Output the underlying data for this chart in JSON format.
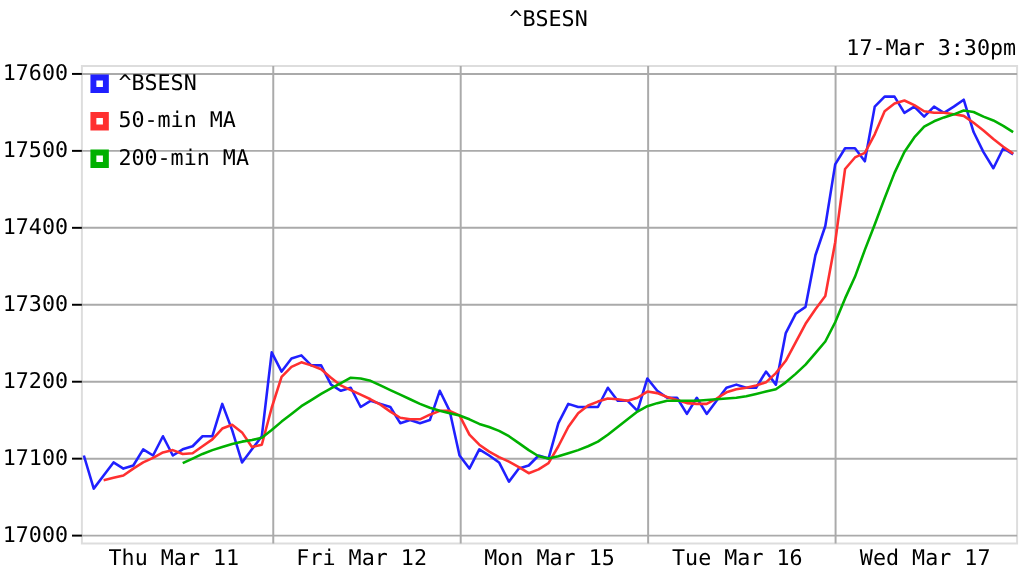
{
  "chart_data": {
    "type": "line",
    "title": "^BSESN",
    "annotations": [
      "17-Mar 3:30pm"
    ],
    "categories": [
      null,
      null,
      null,
      null,
      null,
      null,
      null,
      null,
      null,
      "Thu Mar 11",
      null,
      null,
      null,
      null,
      null,
      null,
      null,
      null,
      null,
      null,
      null,
      null,
      null,
      null,
      null,
      null,
      null,
      null,
      "Fri Mar 12",
      null,
      null,
      null,
      null,
      null,
      null,
      null,
      null,
      null,
      null,
      null,
      null,
      null,
      null,
      null,
      null,
      null,
      null,
      "Mon Mar 15",
      null,
      null,
      null,
      null,
      null,
      null,
      null,
      null,
      null,
      null,
      null,
      null,
      null,
      null,
      null,
      null,
      null,
      null,
      "Tue Mar 16",
      null,
      null,
      null,
      null,
      null,
      null,
      null,
      null,
      null,
      null,
      null,
      null,
      null,
      null,
      null,
      null,
      null,
      null,
      "Wed Mar 17",
      null,
      null,
      null,
      null,
      null,
      null,
      null,
      null,
      null
    ],
    "ylim": [
      16990,
      17610
    ],
    "yticks": [
      {
        "value": 17000,
        "label": "17000"
      },
      {
        "value": 17100,
        "label": "17100"
      },
      {
        "value": 17200,
        "label": "17200"
      },
      {
        "value": 17300,
        "label": "17300"
      },
      {
        "value": 17400,
        "label": "17400"
      },
      {
        "value": 17500,
        "label": "17500"
      },
      {
        "value": 17600,
        "label": "17600"
      }
    ],
    "grid": true,
    "legend": "top left",
    "marker": "none",
    "line_style": "solid",
    "series": [
      {
        "name": "^BSESN",
        "color": "#2020ff",
        "values": [
          17103,
          17060,
          17077,
          17094,
          17086,
          17090,
          17111,
          17103,
          17128,
          17103,
          17111,
          17115,
          17128,
          17128,
          17170,
          17136,
          17094,
          17111,
          17128,
          17237,
          17212,
          17229,
          17233,
          17220,
          17220,
          17195,
          17187,
          17191,
          17166,
          17174,
          17170,
          17166,
          17145,
          17149,
          17145,
          17149,
          17187,
          17161,
          17103,
          17086,
          17111,
          17103,
          17094,
          17069,
          17086,
          17090,
          17103,
          17099,
          17145,
          17170,
          17166,
          17166,
          17166,
          17191,
          17174,
          17174,
          17161,
          17203,
          17187,
          17178,
          17178,
          17157,
          17178,
          17157,
          17174,
          17191,
          17195,
          17191,
          17191,
          17212,
          17195,
          17262,
          17287,
          17296,
          17363,
          17401,
          17481,
          17502,
          17502,
          17485,
          17556,
          17569,
          17569,
          17548,
          17556,
          17543,
          17556,
          17548,
          17556,
          17565,
          17523,
          17497,
          17476,
          17502,
          17494
        ]
      },
      {
        "name": "50-min MA",
        "color": "#ff3030",
        "values": [
          null,
          null,
          17071,
          17074,
          17077,
          17086,
          17094,
          17100,
          17107,
          17110,
          17105,
          17106,
          17115,
          17124,
          17138,
          17143,
          17133,
          17114,
          17117,
          17165,
          17205,
          17218,
          17224,
          17220,
          17215,
          17204,
          17194,
          17188,
          17182,
          17176,
          17169,
          17160,
          17152,
          17150,
          17150,
          17156,
          17161,
          17161,
          17155,
          17130,
          17117,
          17108,
          17101,
          17095,
          17088,
          17080,
          17085,
          17093,
          17115,
          17140,
          17158,
          17168,
          17173,
          17177,
          17176,
          17174,
          17178,
          17186,
          17184,
          17179,
          17175,
          17171,
          17170,
          17170,
          17177,
          17185,
          17189,
          17191,
          17194,
          17198,
          17210,
          17226,
          17250,
          17274,
          17293,
          17310,
          17380,
          17475,
          17490,
          17496,
          17520,
          17550,
          17560,
          17564,
          17558,
          17550,
          17548,
          17548,
          17546,
          17544,
          17535,
          17525,
          17514,
          17504,
          17495
        ]
      },
      {
        "name": "200-min MA",
        "color": "#00b000",
        "values": [
          null,
          null,
          null,
          null,
          null,
          null,
          null,
          null,
          null,
          null,
          17093,
          17099,
          17105,
          17110,
          17114,
          17118,
          17121,
          17123,
          17126,
          17136,
          17147,
          17157,
          17167,
          17175,
          17183,
          17190,
          17197,
          17204,
          17203,
          17200,
          17194,
          17188,
          17182,
          17176,
          17170,
          17165,
          17161,
          17158,
          17155,
          17150,
          17144,
          17140,
          17135,
          17128,
          17119,
          17110,
          17102,
          17099,
          17102,
          17106,
          17110,
          17115,
          17121,
          17130,
          17140,
          17150,
          17160,
          17167,
          17171,
          17174,
          17174,
          17174,
          17174,
          17175,
          17176,
          17177,
          17178,
          17180,
          17183,
          17186,
          17189,
          17198,
          17209,
          17221,
          17236,
          17251,
          17276,
          17307,
          17335,
          17370,
          17403,
          17437,
          17470,
          17497,
          17516,
          17530,
          17537,
          17542,
          17546,
          17551,
          17549,
          17543,
          17538,
          17531,
          17523
        ]
      }
    ]
  }
}
